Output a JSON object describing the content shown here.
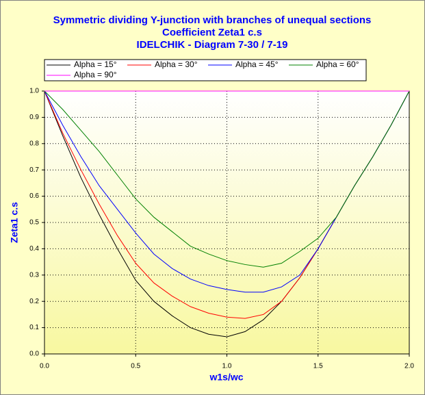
{
  "chart_data": {
    "type": "line",
    "title": [
      "Symmetric dividing Y-junction with branches of unequal sections",
      "Coefficient Zeta1 c.s",
      "IDELCHIK - Diagram 7-30 / 7-19"
    ],
    "x_label": "w1s/wc",
    "y_label": "Zeta1 c.s",
    "x": [
      0,
      0.1,
      0.2,
      0.3,
      0.4,
      0.5,
      0.6,
      0.7,
      0.8,
      0.9,
      1.0,
      1.1,
      1.2,
      1.3,
      1.4,
      1.5,
      1.6,
      1.7,
      1.8,
      1.9,
      2.0
    ],
    "series": [
      {
        "name": "Alpha = 15°",
        "color": "#000000",
        "values": [
          1.0,
          0.83,
          0.67,
          0.53,
          0.4,
          0.28,
          0.2,
          0.145,
          0.1,
          0.075,
          0.065,
          0.085,
          0.13,
          0.2,
          0.29,
          0.4,
          0.52,
          0.64,
          0.75,
          0.87,
          1.0
        ]
      },
      {
        "name": "Alpha = 30°",
        "color": "#ff0000",
        "values": [
          1.0,
          0.84,
          0.7,
          0.57,
          0.45,
          0.345,
          0.27,
          0.22,
          0.18,
          0.155,
          0.14,
          0.135,
          0.15,
          0.2,
          0.29,
          0.4,
          0.52,
          0.64,
          0.75,
          0.87,
          1.0
        ]
      },
      {
        "name": "Alpha = 45°",
        "color": "#0000ff",
        "values": [
          1.0,
          0.87,
          0.75,
          0.64,
          0.55,
          0.46,
          0.38,
          0.325,
          0.285,
          0.26,
          0.245,
          0.235,
          0.235,
          0.255,
          0.3,
          0.4,
          0.52,
          0.64,
          0.75,
          0.87,
          1.0
        ]
      },
      {
        "name": "Alpha = 60°",
        "color": "#008000",
        "values": [
          1.0,
          0.93,
          0.85,
          0.77,
          0.68,
          0.59,
          0.52,
          0.465,
          0.41,
          0.38,
          0.355,
          0.34,
          0.33,
          0.345,
          0.39,
          0.44,
          0.52,
          0.64,
          0.75,
          0.87,
          1.0
        ]
      },
      {
        "name": "Alpha = 90°",
        "color": "#ff00ff",
        "values": [
          1.0,
          1.0,
          1.0,
          1.0,
          1.0,
          1.0,
          1.0,
          1.0,
          1.0,
          1.0,
          1.0,
          1.0,
          1.0,
          1.0,
          1.0,
          1.0,
          1.0,
          1.0,
          1.0,
          1.0,
          1.0
        ]
      }
    ],
    "xlim": [
      0,
      2.0
    ],
    "ylim": [
      0,
      1.0
    ],
    "xticks": [
      {
        "value": 0,
        "label": "0.0"
      },
      0.5,
      {
        "value": 1,
        "label": "1.0"
      },
      1.5,
      {
        "value": 2,
        "label": "2.0"
      }
    ],
    "yticks": [
      {
        "value": 0,
        "label": "0.0"
      },
      0.1,
      0.2,
      0.3,
      0.4,
      0.5,
      0.6,
      0.7,
      0.8,
      0.9,
      {
        "value": 1,
        "label": "1.0"
      }
    ],
    "grid": true
  }
}
